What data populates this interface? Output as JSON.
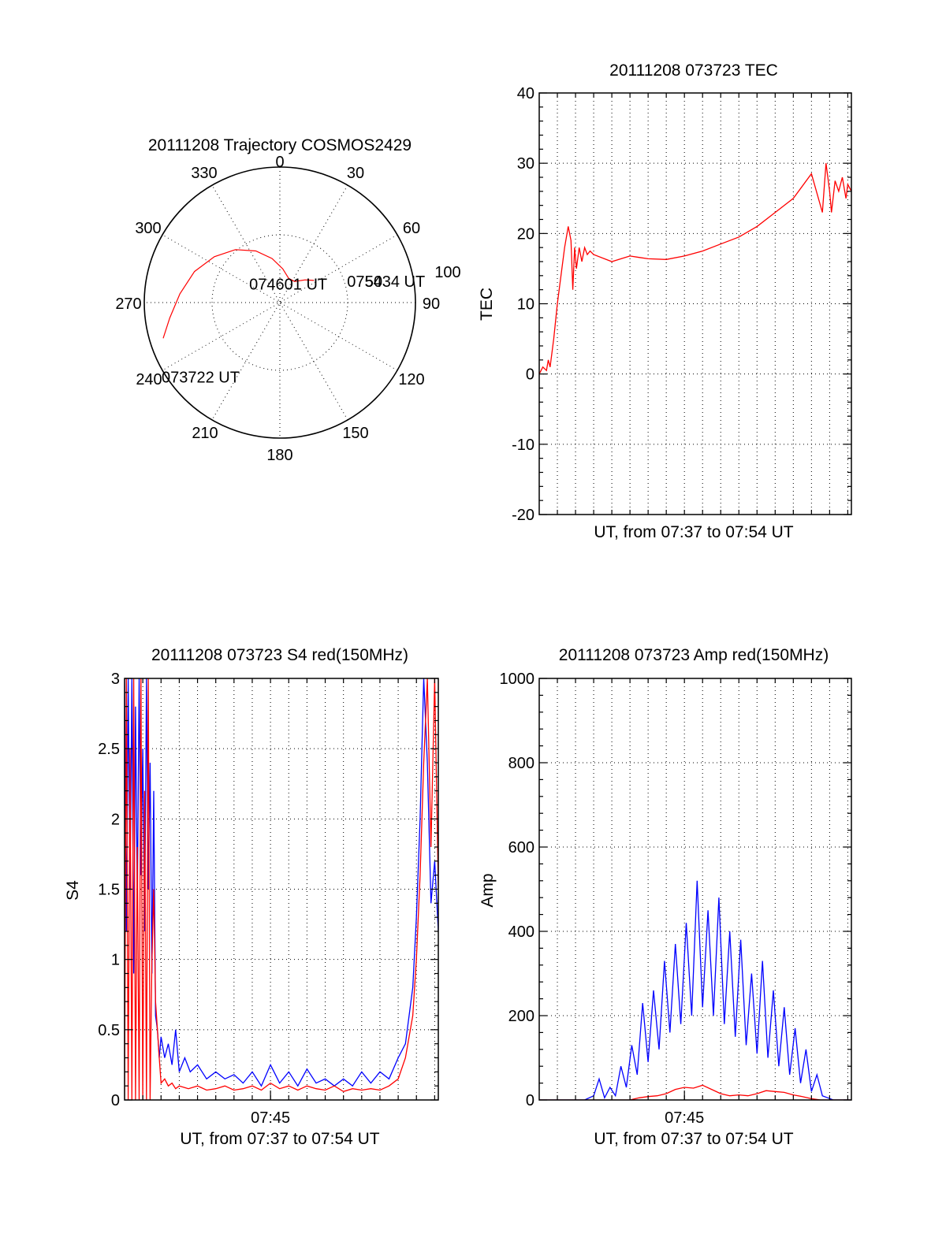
{
  "chart_data": [
    {
      "type": "polar",
      "title": "20111208 Trajectory COSMOS2429",
      "azimuth_labels": [
        "0",
        "30",
        "60",
        "90",
        "120",
        "150",
        "180",
        "210",
        "240",
        "270",
        "300",
        "330"
      ],
      "radial_labels": [
        "50",
        "100"
      ],
      "series": [
        {
          "color": "#ff0000",
          "points": [
            [
              253,
              90
            ],
            [
              262,
              82
            ],
            [
              275,
              74
            ],
            [
              290,
              67
            ],
            [
              305,
              59
            ],
            [
              320,
              51
            ],
            [
              335,
              42
            ],
            [
              350,
              33
            ],
            [
              5,
              25
            ],
            [
              20,
              19
            ],
            [
              35,
              19
            ],
            [
              48,
              25
            ],
            [
              57,
              30
            ]
          ]
        }
      ],
      "annotations": [
        {
          "text": "073722 UT",
          "az": 253,
          "zen": 90
        },
        {
          "text": "074601 UT",
          "az": 20,
          "zen": 19
        },
        {
          "text": "075434 UT",
          "az": 57,
          "zen": 30
        }
      ]
    },
    {
      "type": "line",
      "title": "20111208 073723 TEC",
      "xlabel": "UT, from 07:37 to 07:54 UT",
      "ylabel": "TEC",
      "xlim": [
        0,
        17.2
      ],
      "ylim": [
        -20,
        40
      ],
      "yticks": [
        "-20",
        "-10",
        "0",
        "10",
        "20",
        "30",
        "40"
      ],
      "xgrid_minutes": [
        1,
        2,
        3,
        4,
        5,
        6,
        7,
        8,
        9,
        10,
        11,
        12,
        13,
        14,
        15,
        16,
        17
      ],
      "series": [
        {
          "color": "#ff0000",
          "x": [
            0,
            0.2,
            0.4,
            0.5,
            0.6,
            0.8,
            1.0,
            1.2,
            1.4,
            1.6,
            1.75,
            1.85,
            1.95,
            2.05,
            2.2,
            2.35,
            2.5,
            2.65,
            2.8,
            3.0,
            4.0,
            5.0,
            5.5,
            6.0,
            7.0,
            8.0,
            9.0,
            10.0,
            11.0,
            12.0,
            13.0,
            14.0,
            15.0,
            15.6,
            15.8,
            16.0,
            16.1,
            16.3,
            16.5,
            16.7,
            16.9,
            17.0,
            17.2
          ],
          "y": [
            0,
            1,
            0.5,
            2,
            1,
            5,
            10,
            14,
            18,
            21,
            19,
            12,
            18,
            15,
            18,
            16,
            18,
            17,
            17.5,
            17,
            16,
            16.8,
            16.6,
            16.4,
            16.3,
            16.8,
            17.5,
            18.5,
            19.5,
            21,
            23,
            25,
            28.5,
            23,
            30,
            26,
            23,
            27.5,
            26,
            28,
            25,
            27,
            26
          ]
        }
      ]
    },
    {
      "type": "line",
      "title": "20111208 073723 S4 red(150MHz)",
      "xlabel": "UT, from 07:37 to 07:54 UT",
      "ylabel": "S4",
      "xlim": [
        0,
        17.2
      ],
      "ylim": [
        0,
        3
      ],
      "yticks": [
        "0",
        "0.5",
        "1",
        "1.5",
        "2",
        "2.5",
        "3"
      ],
      "xticks": [
        {
          "x": 8,
          "label": "07:45"
        }
      ],
      "xgrid_minutes": [
        1,
        2,
        3,
        4,
        5,
        6,
        7,
        8,
        9,
        10,
        11,
        12,
        13,
        14,
        15,
        16,
        17
      ],
      "series": [
        {
          "color": "#0000ff",
          "x": [
            0,
            0.1,
            0.2,
            0.3,
            0.4,
            0.5,
            0.6,
            0.7,
            0.8,
            0.9,
            1.0,
            1.1,
            1.2,
            1.3,
            1.4,
            1.5,
            1.6,
            1.7,
            1.8,
            1.9,
            2.0,
            2.2,
            2.4,
            2.6,
            2.8,
            3.0,
            3.3,
            3.6,
            4.0,
            4.5,
            5.0,
            5.5,
            6.0,
            6.5,
            7.0,
            7.5,
            8.0,
            8.5,
            9.0,
            9.5,
            10.0,
            10.5,
            11.0,
            11.5,
            12.0,
            12.5,
            13.0,
            13.5,
            14.0,
            14.5,
            15.0,
            15.4,
            15.8,
            16.0,
            16.2,
            16.4,
            16.6,
            16.8,
            17.0,
            17.2
          ],
          "y": [
            3,
            1.2,
            3,
            1.5,
            3,
            0.9,
            2.8,
            1.4,
            3,
            1.6,
            2.5,
            1.2,
            3,
            1.5,
            2.4,
            0.9,
            2.2,
            0.6,
            0.5,
            0.3,
            0.45,
            0.3,
            0.4,
            0.25,
            0.5,
            0.2,
            0.3,
            0.2,
            0.25,
            0.15,
            0.2,
            0.15,
            0.18,
            0.12,
            0.2,
            0.1,
            0.25,
            0.12,
            0.2,
            0.1,
            0.22,
            0.12,
            0.15,
            0.1,
            0.15,
            0.1,
            0.2,
            0.12,
            0.2,
            0.15,
            0.3,
            0.4,
            0.8,
            1.3,
            2.0,
            3,
            2.4,
            1.4,
            1.7,
            1.2
          ]
        },
        {
          "color": "#ff0000",
          "x": [
            0,
            0.1,
            0.2,
            0.3,
            0.4,
            0.5,
            0.6,
            0.7,
            0.8,
            0.9,
            1.0,
            1.1,
            1.2,
            1.3,
            1.4,
            1.5,
            1.6,
            1.7,
            1.8,
            1.9,
            2.0,
            2.2,
            2.4,
            2.6,
            2.8,
            3.0,
            3.5,
            4.0,
            4.5,
            5.0,
            5.5,
            6.0,
            6.5,
            7.0,
            7.5,
            8.0,
            8.5,
            9.0,
            9.5,
            10.0,
            10.5,
            11.0,
            11.5,
            12.0,
            12.5,
            13.0,
            13.5,
            14.0,
            14.5,
            15.0,
            15.4,
            15.8,
            16.0,
            16.2,
            16.4,
            16.6,
            16.8,
            17.0,
            17.2
          ],
          "y": [
            0,
            3,
            0,
            2.5,
            0,
            3,
            0,
            1.8,
            0,
            3,
            0,
            2.2,
            0,
            3,
            0,
            1.0,
            1.5,
            0.7,
            0.5,
            0.3,
            0.12,
            0.15,
            0.1,
            0.12,
            0.08,
            0.1,
            0.08,
            0.1,
            0.07,
            0.08,
            0.1,
            0.07,
            0.08,
            0.1,
            0.07,
            0.12,
            0.08,
            0.1,
            0.07,
            0.1,
            0.08,
            0.07,
            0.1,
            0.06,
            0.08,
            0.07,
            0.08,
            0.07,
            0.1,
            0.15,
            0.3,
            0.6,
            1.0,
            1.6,
            2.4,
            3,
            1.8,
            3,
            1.5
          ]
        }
      ]
    },
    {
      "type": "line",
      "title": "20111208 073723 Amp red(150MHz)",
      "xlabel": "UT, from 07:37 to 07:54 UT",
      "ylabel": "Amp",
      "xlim": [
        0,
        17.2
      ],
      "ylim": [
        0,
        1000
      ],
      "yticks": [
        "0",
        "200",
        "400",
        "600",
        "800",
        "1000"
      ],
      "xticks": [
        {
          "x": 8,
          "label": "07:45"
        }
      ],
      "xgrid_minutes": [
        1,
        2,
        3,
        4,
        5,
        6,
        7,
        8,
        9,
        10,
        11,
        12,
        13,
        14,
        15,
        16,
        17
      ],
      "series": [
        {
          "color": "#0000ff",
          "x": [
            0,
            2.5,
            3.0,
            3.3,
            3.6,
            3.9,
            4.2,
            4.5,
            4.8,
            5.1,
            5.4,
            5.7,
            6.0,
            6.3,
            6.6,
            6.9,
            7.2,
            7.5,
            7.8,
            8.1,
            8.4,
            8.7,
            9.0,
            9.3,
            9.6,
            9.9,
            10.2,
            10.5,
            10.8,
            11.1,
            11.4,
            11.7,
            12.0,
            12.3,
            12.6,
            12.9,
            13.2,
            13.5,
            13.8,
            14.1,
            14.4,
            14.7,
            15.0,
            15.3,
            15.6,
            15.9,
            16.2,
            17.2
          ],
          "y": [
            0,
            0,
            10,
            50,
            5,
            30,
            10,
            80,
            30,
            130,
            60,
            230,
            90,
            260,
            120,
            330,
            160,
            370,
            180,
            420,
            200,
            520,
            220,
            450,
            200,
            480,
            180,
            400,
            150,
            380,
            130,
            300,
            110,
            330,
            100,
            260,
            80,
            220,
            60,
            170,
            40,
            120,
            20,
            60,
            10,
            5,
            0,
            0
          ]
        },
        {
          "color": "#ff0000",
          "x": [
            0,
            5.0,
            5.5,
            6.0,
            6.5,
            7.0,
            7.5,
            8.0,
            8.5,
            9.0,
            9.5,
            10.0,
            10.5,
            11.0,
            11.5,
            12.0,
            12.5,
            13.0,
            13.5,
            14.0,
            14.5,
            15.0,
            15.5,
            17.2
          ],
          "y": [
            0,
            0,
            5,
            8,
            10,
            15,
            25,
            30,
            28,
            35,
            25,
            15,
            10,
            12,
            10,
            15,
            22,
            20,
            18,
            12,
            8,
            3,
            0,
            0
          ]
        }
      ]
    }
  ]
}
